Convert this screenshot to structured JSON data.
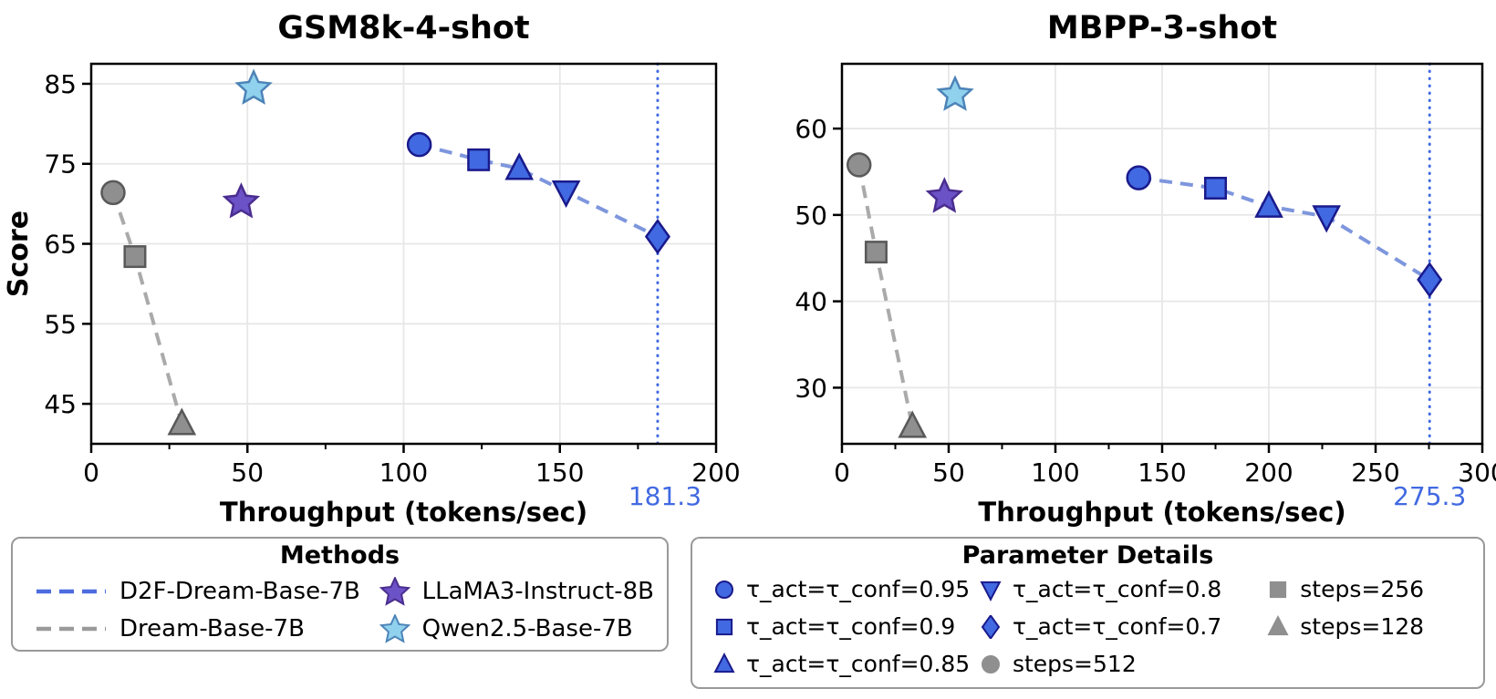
{
  "colors": {
    "blue_fill": "#4169e1",
    "blue_edge": "#1a1a8c",
    "blue_dash_line": "#7e96dd",
    "blue_dash_legend": "#4d6be0",
    "gray_fill": "#8f8f8f",
    "gray_edge": "#595959",
    "gray_dash_line": "#aaaaaa",
    "gray_dash_legend": "#9a9a9a",
    "purple_fill": "#6b52c6",
    "purple_edge": "#4a2d8f",
    "cyan_fill": "#90d1ed",
    "cyan_edge": "#4d84b8",
    "vline": "#4169e1",
    "annotation": "#4169e1",
    "grid": "#e7e7e7",
    "axis": "#000000"
  },
  "chart_data": [
    {
      "type": "scatter",
      "title": "GSM8k-4-shot",
      "xlabel": "Throughput (tokens/sec)",
      "ylabel": "Score",
      "xlim": [
        0,
        200
      ],
      "ylim": [
        40,
        87.5
      ],
      "xticks": [
        0,
        50,
        100,
        150,
        200
      ],
      "yticks": [
        45,
        55,
        65,
        75,
        85
      ],
      "grid": true,
      "vline": {
        "x": 181.3,
        "label": "181.3"
      },
      "series": [
        {
          "name": "D2F-Dream-Base-7B",
          "line": "dashed",
          "line_color": "#7e96dd",
          "fill": "#4169e1",
          "edge": "#1a1a8c",
          "points": [
            {
              "x": 105,
              "y": 77.4,
              "marker": "circle"
            },
            {
              "x": 124,
              "y": 75.5,
              "marker": "square"
            },
            {
              "x": 137,
              "y": 74.4,
              "marker": "triangle-up"
            },
            {
              "x": 152,
              "y": 71.5,
              "marker": "triangle-down"
            },
            {
              "x": 181.3,
              "y": 65.9,
              "marker": "diamond"
            }
          ]
        },
        {
          "name": "Dream-Base-7B",
          "line": "dashed",
          "line_color": "#aaaaaa",
          "fill": "#8f8f8f",
          "edge": "#595959",
          "points": [
            {
              "x": 7,
              "y": 71.4,
              "marker": "circle"
            },
            {
              "x": 14,
              "y": 63.4,
              "marker": "square"
            },
            {
              "x": 29,
              "y": 42.5,
              "marker": "triangle-up"
            }
          ]
        },
        {
          "name": "LLaMA3-Instruct-8B",
          "line": "none",
          "line_color": "none",
          "fill": "#6b52c6",
          "edge": "#4a2d8f",
          "points": [
            {
              "x": 48,
              "y": 70.2,
              "marker": "star"
            }
          ]
        },
        {
          "name": "Qwen2.5-Base-7B",
          "line": "none",
          "line_color": "none",
          "fill": "#90d1ed",
          "edge": "#4d84b8",
          "points": [
            {
              "x": 52,
              "y": 84.4,
              "marker": "star"
            }
          ]
        }
      ]
    },
    {
      "type": "scatter",
      "title": "MBPP-3-shot",
      "xlabel": "Throughput (tokens/sec)",
      "ylabel": "",
      "xlim": [
        0,
        300
      ],
      "ylim": [
        23.5,
        67.5
      ],
      "xticks": [
        0,
        50,
        100,
        150,
        200,
        250,
        300
      ],
      "yticks": [
        30,
        40,
        50,
        60
      ],
      "grid": true,
      "vline": {
        "x": 275.3,
        "label": "275.3"
      },
      "series": [
        {
          "name": "D2F-Dream-Base-7B",
          "line": "dashed",
          "line_color": "#7e96dd",
          "fill": "#4169e1",
          "edge": "#1a1a8c",
          "points": [
            {
              "x": 139,
              "y": 54.3,
              "marker": "circle"
            },
            {
              "x": 175,
              "y": 53.1,
              "marker": "square"
            },
            {
              "x": 200,
              "y": 51.0,
              "marker": "triangle-up"
            },
            {
              "x": 227,
              "y": 49.8,
              "marker": "triangle-down"
            },
            {
              "x": 275.3,
              "y": 42.5,
              "marker": "diamond"
            }
          ]
        },
        {
          "name": "Dream-Base-7B",
          "line": "dashed",
          "line_color": "#aaaaaa",
          "fill": "#8f8f8f",
          "edge": "#595959",
          "points": [
            {
              "x": 8,
              "y": 55.8,
              "marker": "circle"
            },
            {
              "x": 16,
              "y": 45.7,
              "marker": "square"
            },
            {
              "x": 33,
              "y": 25.5,
              "marker": "triangle-up"
            }
          ]
        },
        {
          "name": "LLaMA3-Instruct-8B",
          "line": "none",
          "line_color": "none",
          "fill": "#6b52c6",
          "edge": "#4a2d8f",
          "points": [
            {
              "x": 48,
              "y": 52.1,
              "marker": "star"
            }
          ]
        },
        {
          "name": "Qwen2.5-Base-7B",
          "line": "none",
          "line_color": "none",
          "fill": "#90d1ed",
          "edge": "#4d84b8",
          "points": [
            {
              "x": 53,
              "y": 63.9,
              "marker": "star"
            }
          ]
        }
      ]
    }
  ],
  "legends": {
    "methods": {
      "title": "Methods",
      "items": [
        {
          "label": "D2F-Dream-Base-7B",
          "marker": "dash",
          "color": "#4d6be0"
        },
        {
          "label": "LLaMA3-Instruct-8B",
          "marker": "star",
          "fill": "#6b52c6",
          "edge": "#4a2d8f"
        },
        {
          "label": "Dream-Base-7B",
          "marker": "dash",
          "color": "#9a9a9a"
        },
        {
          "label": "Qwen2.5-Base-7B",
          "marker": "star",
          "fill": "#90d1ed",
          "edge": "#4d84b8"
        }
      ]
    },
    "parameters": {
      "title": "Parameter Details",
      "items": [
        {
          "label": "τ_act=τ_conf=0.95",
          "marker": "circle",
          "fill": "#4169e1",
          "edge": "#1a1a8c"
        },
        {
          "label": "τ_act=τ_conf=0.8",
          "marker": "triangle-down",
          "fill": "#4169e1",
          "edge": "#1a1a8c"
        },
        {
          "label": "steps=256",
          "marker": "square",
          "fill": "#8f8f8f",
          "edge": "#8f8f8f"
        },
        {
          "label": "τ_act=τ_conf=0.9",
          "marker": "square",
          "fill": "#4169e1",
          "edge": "#1a1a8c"
        },
        {
          "label": "τ_act=τ_conf=0.7",
          "marker": "diamond",
          "fill": "#4169e1",
          "edge": "#1a1a8c"
        },
        {
          "label": "steps=128",
          "marker": "triangle-up",
          "fill": "#8f8f8f",
          "edge": "#8f8f8f"
        },
        {
          "label": "τ_act=τ_conf=0.85",
          "marker": "triangle-up",
          "fill": "#4169e1",
          "edge": "#1a1a8c"
        },
        {
          "label": "steps=512",
          "marker": "circle",
          "fill": "#8f8f8f",
          "edge": "#8f8f8f"
        }
      ]
    }
  }
}
